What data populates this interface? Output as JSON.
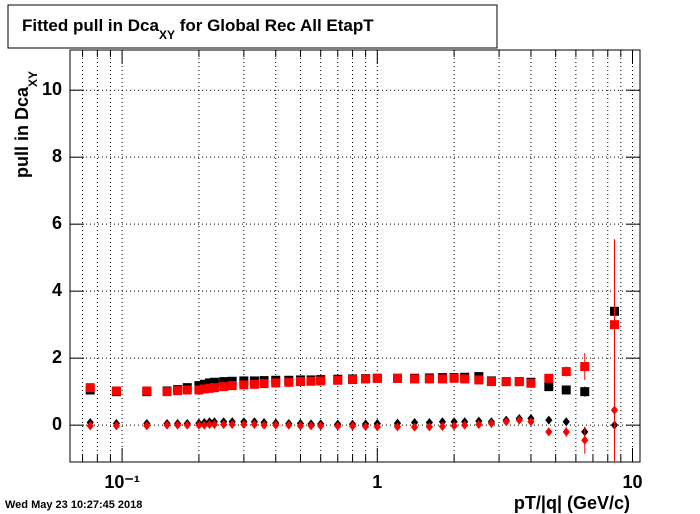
{
  "chart_data": {
    "type": "scatter",
    "title": [
      "Fitted pull in Dca",
      "XY",
      " for Global Rec All EtapT"
    ],
    "ylabel": [
      "pull in Dca",
      "XY"
    ],
    "xlabel": "pT/|q| (GeV/c)",
    "xlog": true,
    "grid": true,
    "xlim": [
      0.0625,
      10.7
    ],
    "ylim": [
      -1.1,
      11.2
    ],
    "xticks": [
      {
        "value": 0.1,
        "label": "10⁻¹"
      },
      1,
      10
    ],
    "xminorticks": [
      0.07,
      0.08,
      0.09,
      0.2,
      0.3,
      0.4,
      0.5,
      0.6,
      0.7,
      0.8,
      0.9,
      2,
      3,
      4,
      5,
      6,
      7,
      8,
      9
    ],
    "yticks": [
      0,
      2,
      4,
      6,
      8,
      10
    ],
    "x": [
      0.075,
      0.095,
      0.125,
      0.15,
      0.165,
      0.18,
      0.2,
      0.21,
      0.22,
      0.23,
      0.25,
      0.27,
      0.3,
      0.33,
      0.36,
      0.4,
      0.45,
      0.5,
      0.55,
      0.6,
      0.7,
      0.8,
      0.9,
      1.0,
      1.2,
      1.4,
      1.6,
      1.8,
      2.0,
      2.2,
      2.5,
      2.8,
      3.2,
      3.6,
      4.0,
      4.7,
      5.5,
      6.5,
      8.5
    ],
    "series": [
      {
        "color": "#000000",
        "marker": "square",
        "values": [
          1.05,
          1.0,
          1.0,
          1.02,
          1.06,
          1.12,
          1.18,
          1.22,
          1.26,
          1.28,
          1.3,
          1.31,
          1.32,
          1.32,
          1.33,
          1.34,
          1.34,
          1.35,
          1.35,
          1.36,
          1.37,
          1.38,
          1.39,
          1.4,
          1.4,
          1.4,
          1.41,
          1.42,
          1.42,
          1.43,
          1.45,
          1.32,
          1.3,
          1.3,
          1.28,
          1.15,
          1.05,
          1.0,
          3.4
        ],
        "errors": [
          0.03,
          0.02,
          0.02,
          0.02,
          0.02,
          0.02,
          0.02,
          0.02,
          0.02,
          0.02,
          0.02,
          0.02,
          0.02,
          0.02,
          0.02,
          0.02,
          0.02,
          0.02,
          0.02,
          0.02,
          0.02,
          0.02,
          0.02,
          0.02,
          0.02,
          0.02,
          0.02,
          0.02,
          0.02,
          0.03,
          0.03,
          0.04,
          0.04,
          0.05,
          0.06,
          0.08,
          0.1,
          0.15,
          0.3
        ]
      },
      {
        "color": "#000000",
        "marker": "diamond",
        "values": [
          0.08,
          0.05,
          0.05,
          0.05,
          0.05,
          0.05,
          0.06,
          0.08,
          0.1,
          0.1,
          0.1,
          0.1,
          0.1,
          0.1,
          0.08,
          0.06,
          0.05,
          0.05,
          0.04,
          0.04,
          0.03,
          0.03,
          0.04,
          0.05,
          0.06,
          0.08,
          0.08,
          0.1,
          0.1,
          0.1,
          0.12,
          0.1,
          0.15,
          0.2,
          0.2,
          0.15,
          0.1,
          -0.2,
          0.0
        ],
        "errors": [
          0.03,
          0.02,
          0.02,
          0.02,
          0.02,
          0.02,
          0.02,
          0.02,
          0.02,
          0.02,
          0.02,
          0.02,
          0.02,
          0.02,
          0.02,
          0.02,
          0.02,
          0.02,
          0.02,
          0.02,
          0.02,
          0.02,
          0.02,
          0.02,
          0.02,
          0.02,
          0.02,
          0.02,
          0.02,
          0.03,
          0.03,
          0.04,
          0.04,
          0.05,
          0.06,
          0.08,
          0.1,
          0.15,
          0.3
        ]
      },
      {
        "color": "#ff0000",
        "marker": "square",
        "values": [
          1.12,
          1.02,
          1.02,
          1.0,
          1.03,
          1.05,
          1.05,
          1.08,
          1.1,
          1.12,
          1.15,
          1.18,
          1.2,
          1.22,
          1.24,
          1.26,
          1.28,
          1.3,
          1.31,
          1.32,
          1.34,
          1.36,
          1.38,
          1.4,
          1.4,
          1.38,
          1.38,
          1.38,
          1.4,
          1.38,
          1.35,
          1.3,
          1.3,
          1.3,
          1.25,
          1.4,
          1.6,
          1.75,
          3.0
        ],
        "errors": [
          0.04,
          0.03,
          0.03,
          0.03,
          0.03,
          0.03,
          0.03,
          0.03,
          0.03,
          0.03,
          0.03,
          0.03,
          0.03,
          0.03,
          0.03,
          0.03,
          0.03,
          0.03,
          0.03,
          0.03,
          0.03,
          0.03,
          0.03,
          0.03,
          0.03,
          0.03,
          0.03,
          0.03,
          0.04,
          0.04,
          0.05,
          0.06,
          0.07,
          0.08,
          0.1,
          0.12,
          0.15,
          0.4,
          2.5
        ]
      },
      {
        "color": "#ff0000",
        "marker": "diamond",
        "values": [
          -0.02,
          -0.02,
          -0.02,
          0.0,
          0.0,
          0.0,
          0.0,
          0.0,
          0.02,
          0.02,
          0.02,
          0.02,
          0.02,
          0.02,
          0.0,
          0.0,
          0.0,
          -0.02,
          -0.02,
          -0.02,
          -0.03,
          -0.03,
          -0.04,
          -0.05,
          -0.05,
          -0.06,
          -0.05,
          -0.04,
          -0.02,
          0.0,
          0.02,
          0.05,
          0.1,
          0.15,
          0.1,
          -0.2,
          -0.2,
          -0.45,
          0.45
        ],
        "errors": [
          0.04,
          0.03,
          0.03,
          0.03,
          0.03,
          0.03,
          0.03,
          0.03,
          0.03,
          0.03,
          0.03,
          0.03,
          0.03,
          0.03,
          0.03,
          0.03,
          0.03,
          0.03,
          0.03,
          0.03,
          0.03,
          0.03,
          0.03,
          0.03,
          0.03,
          0.03,
          0.03,
          0.03,
          0.04,
          0.04,
          0.05,
          0.06,
          0.07,
          0.08,
          0.1,
          0.12,
          0.15,
          0.4,
          5.1
        ]
      }
    ]
  },
  "timestamp": "Wed May 23 10:27:45 2018"
}
